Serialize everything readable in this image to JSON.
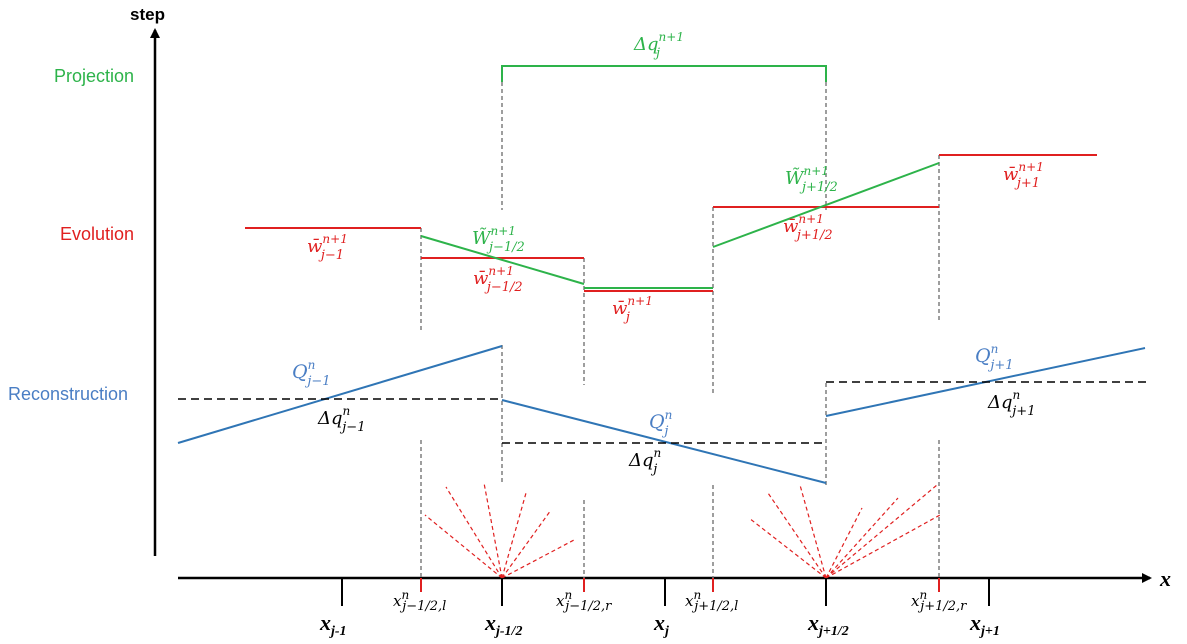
{
  "axes": {
    "y_label": "step",
    "x_label": "x"
  },
  "stages": {
    "projection": "Projection",
    "evolution": "Evolution",
    "reconstruction": "Reconstruction"
  },
  "colors": {
    "projection": "#2db34a",
    "evolution": "#e02020",
    "reconstruction": "#4a7ec4",
    "black": "#000000",
    "grey": "#7f7f7f"
  },
  "labels": {
    "dq_proj": {
      "base": "Δq",
      "sub": "j",
      "sup": "n+1"
    },
    "wt_left": {
      "base": "W̃",
      "sub": "j−1/2",
      "sup": "n+1"
    },
    "wt_right": {
      "base": "W̃",
      "sub": "j+1/2",
      "sup": "n+1"
    },
    "wb_jm1": {
      "base": "w̄",
      "sub": "j−1",
      "sup": "n+1"
    },
    "wb_jmh": {
      "base": "w̄",
      "sub": "j−1/2",
      "sup": "n+1"
    },
    "wb_j": {
      "base": "w̄",
      "sub": "j",
      "sup": "n+1"
    },
    "wb_jph": {
      "base": "w̄",
      "sub": "j+1/2",
      "sup": "n+1"
    },
    "wb_jp1": {
      "base": "w̄",
      "sub": "j+1",
      "sup": "n+1"
    },
    "Q_jm1": {
      "base": "Q",
      "sub": "j−1",
      "sup": "n"
    },
    "Q_j": {
      "base": "Q",
      "sub": "j",
      "sup": "n"
    },
    "Q_jp1": {
      "base": "Q",
      "sub": "j+1",
      "sup": "n"
    },
    "dq_jm1": {
      "base": "Δq",
      "sub": "j−1",
      "sup": "n"
    },
    "dq_j": {
      "base": "Δq",
      "sub": "j",
      "sup": "n"
    },
    "dq_jp1": {
      "base": "Δq",
      "sub": "j+1",
      "sup": "n"
    }
  },
  "ticks": {
    "x_jm1": {
      "base": "x",
      "sub": "j-1"
    },
    "x_jmh": {
      "base": "x",
      "sub": "j-1/2"
    },
    "x_j": {
      "base": "x",
      "sub": "j"
    },
    "x_jph": {
      "base": "x",
      "sub": "j+1/2"
    },
    "x_jp1": {
      "base": "x",
      "sub": "j+1"
    },
    "xl_jmh": {
      "base": "x",
      "sub": "j−1/2,l",
      "sup": "n"
    },
    "xr_jmh": {
      "base": "x",
      "sub": "j−1/2,r",
      "sup": "n"
    },
    "xl_jph": {
      "base": "x",
      "sub": "j+1/2,l",
      "sup": "n"
    },
    "xr_jph": {
      "base": "x",
      "sub": "j+1/2,r",
      "sup": "n"
    }
  }
}
